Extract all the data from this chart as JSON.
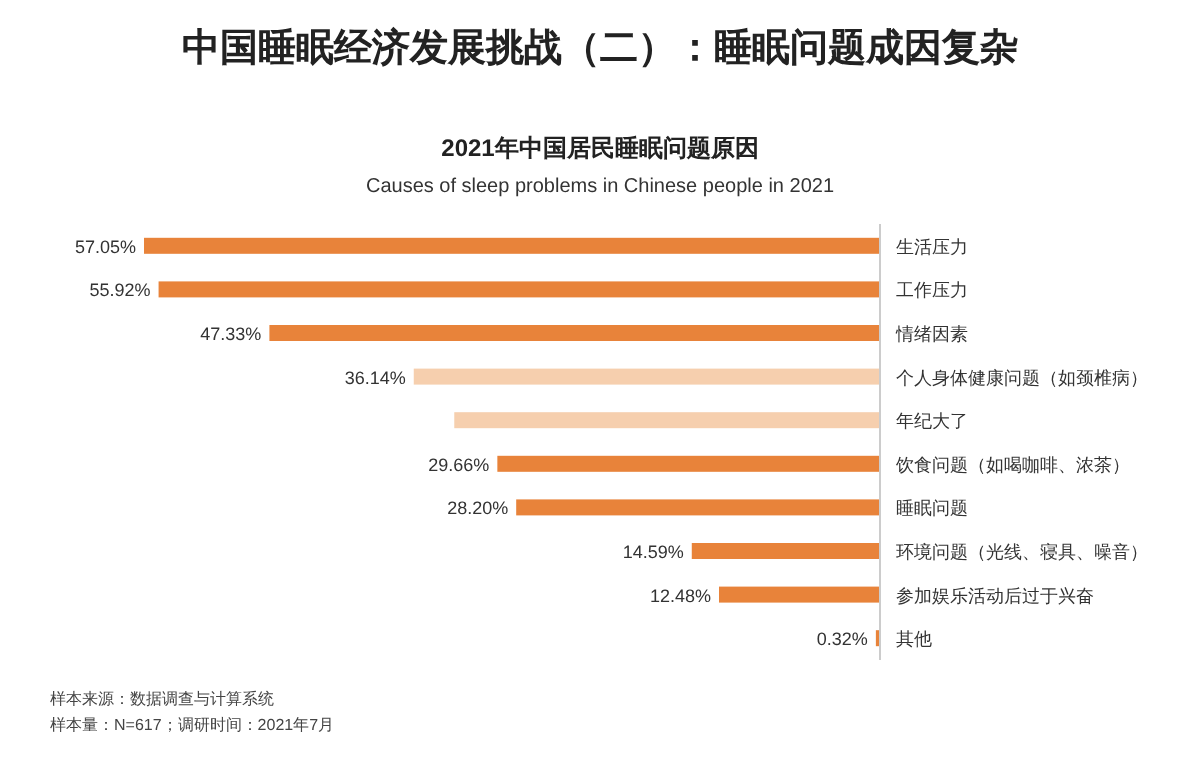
{
  "chart_data": {
    "type": "bar",
    "orientation": "horizontal",
    "title": "中国睡眠经济发展挑战（二）：睡眠问题成因复杂",
    "subtitle": "2021年中国居民睡眠问题原因",
    "categories": [
      "生活压力",
      "工作压力",
      "情绪因素",
      "个人身体健康问题（如颈椎病）",
      "年纪大了",
      "饮食问题（如喝咖啡、浓茶）",
      "睡眠问题",
      "环境问题（光线、寝具、噪音）",
      "参加娱乐活动后过于兴奋",
      "其他"
    ],
    "values": [
      57.05,
      55.92,
      47.33,
      36.14,
      33,
      29.66,
      28.2,
      14.59,
      12.48,
      0.32
    ],
    "colors": [
      "#e8833a",
      "#e8833a",
      "#e8833a",
      "#f6cfae",
      "#f6cfae",
      "#e8833a",
      "#e8833a",
      "#e8833a",
      "#e8833a",
      "#e8833a"
    ],
    "value_labels": [
      "57.05%",
      "55.92%",
      "47.33%",
      "36.14%",
      null,
      "29.66%",
      "28.20%",
      "14.59%",
      "12.48%",
      "0.32%"
    ],
    "annotations": [
      "Causes of sleep problems in Chinese people in 2021",
      "样本来源：数据调查与计算系统",
      "样本量：N=617；调研时间：2021年7月"
    ],
    "data_labels": false
  }
}
